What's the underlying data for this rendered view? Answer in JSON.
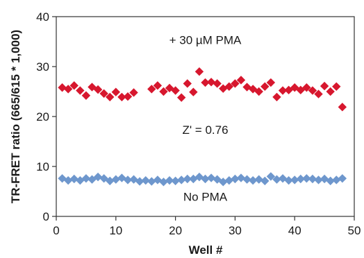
{
  "chart_data": {
    "type": "scatter",
    "xlabel": "Well #",
    "ylabel": "TR-FRET ratio (665/615 * 1,000)",
    "xlim": [
      0,
      50
    ],
    "ylim": [
      0,
      40
    ],
    "xticks": [
      0,
      10,
      20,
      30,
      40,
      50
    ],
    "yticks": [
      0,
      10,
      20,
      30,
      40
    ],
    "grid": false,
    "marker": "diamond",
    "series": [
      {
        "name": "+ 30 µM PMA",
        "color": "#d7172e",
        "x": [
          1,
          2,
          3,
          4,
          5,
          6,
          7,
          8,
          9,
          10,
          11,
          12,
          13,
          16,
          17,
          18,
          19,
          20,
          21,
          22,
          23,
          24,
          25,
          26,
          27,
          28,
          29,
          30,
          31,
          32,
          33,
          34,
          35,
          36,
          37,
          38,
          39,
          40,
          41,
          42,
          43,
          44,
          45,
          46,
          47,
          48
        ],
        "y": [
          25.8,
          25.5,
          26.2,
          25.2,
          24.2,
          25.9,
          25.4,
          24.6,
          23.9,
          24.9,
          23.9,
          24.0,
          24.8,
          25.5,
          26.2,
          25.0,
          25.7,
          25.2,
          23.8,
          26.6,
          24.9,
          29.0,
          26.8,
          26.9,
          26.6,
          25.6,
          26.0,
          26.6,
          27.3,
          25.9,
          25.5,
          25.0,
          26.0,
          26.8,
          23.9,
          25.2,
          25.3,
          25.8,
          25.3,
          25.8,
          25.2,
          24.5,
          26.1,
          25.0,
          26.0,
          21.9
        ]
      },
      {
        "name": "No PMA",
        "color": "#6e97cd",
        "x": [
          1,
          2,
          3,
          4,
          5,
          6,
          7,
          8,
          9,
          10,
          11,
          12,
          13,
          14,
          15,
          16,
          17,
          18,
          19,
          20,
          21,
          22,
          23,
          24,
          25,
          26,
          27,
          28,
          29,
          30,
          31,
          32,
          33,
          34,
          35,
          36,
          37,
          38,
          39,
          40,
          41,
          42,
          43,
          44,
          45,
          46,
          47,
          48
        ],
        "y": [
          7.6,
          7.2,
          7.5,
          7.2,
          7.6,
          7.4,
          7.9,
          7.6,
          7.1,
          7.4,
          7.7,
          7.3,
          7.4,
          7.0,
          7.2,
          7.0,
          7.3,
          6.9,
          7.2,
          7.1,
          7.3,
          7.5,
          7.5,
          7.9,
          7.5,
          7.7,
          7.4,
          6.9,
          7.2,
          7.5,
          7.7,
          7.4,
          7.2,
          7.4,
          7.1,
          8.0,
          7.4,
          7.6,
          7.2,
          7.3,
          7.5,
          7.6,
          7.5,
          7.3,
          7.5,
          7.1,
          7.3,
          7.6
        ]
      }
    ],
    "annotations": [
      {
        "text": "+ 30 µM PMA",
        "x": 25,
        "y": 34.5
      },
      {
        "text": "Z' = 0.76",
        "x": 25,
        "y": 16.5
      },
      {
        "text": "No PMA",
        "x": 25,
        "y": 3.1
      }
    ]
  }
}
